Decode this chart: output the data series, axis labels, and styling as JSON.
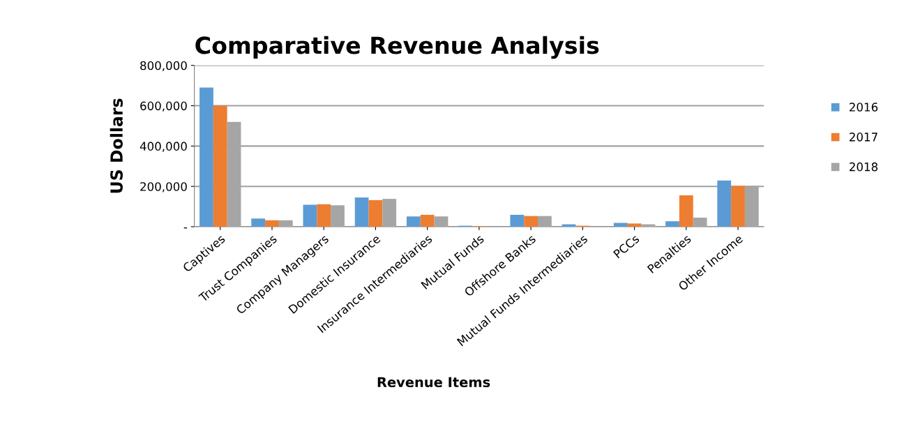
{
  "chart_data": {
    "type": "bar",
    "title": "Comparative Revenue Analysis",
    "xlabel": "Revenue Items",
    "ylabel": "US Dollars",
    "categories": [
      "Captives",
      "Trust Companies",
      "Company Managers",
      "Domestic Insurance",
      "Insurance Intermediaries",
      "Mutual Funds",
      "Offshore Banks",
      "Mutual Funds Intermediaries",
      "PCCs",
      "Penalties",
      "Other Income"
    ],
    "series": [
      {
        "name": "2016",
        "color": "#5b9bd5",
        "values": [
          690000,
          41000,
          109000,
          145000,
          51000,
          5000,
          59000,
          12000,
          19000,
          27000,
          229000
        ]
      },
      {
        "name": "2017",
        "color": "#ed7d31",
        "values": [
          600000,
          32000,
          112000,
          132000,
          59000,
          3000,
          53000,
          5000,
          16000,
          156000,
          202000
        ]
      },
      {
        "name": "2018",
        "color": "#a5a5a5",
        "values": [
          520000,
          32000,
          106000,
          138000,
          51000,
          null,
          53000,
          null,
          12000,
          45000,
          202000
        ]
      }
    ],
    "ylim": [
      0,
      800000
    ],
    "yticks": [
      {
        "value": 0,
        "label": "-"
      },
      {
        "value": 200000,
        "label": "200,000"
      },
      {
        "value": 400000,
        "label": "400,000"
      },
      {
        "value": 600000,
        "label": "600,000"
      },
      {
        "value": 800000,
        "label": "800,000"
      }
    ],
    "grid": "y",
    "legend": "right"
  }
}
